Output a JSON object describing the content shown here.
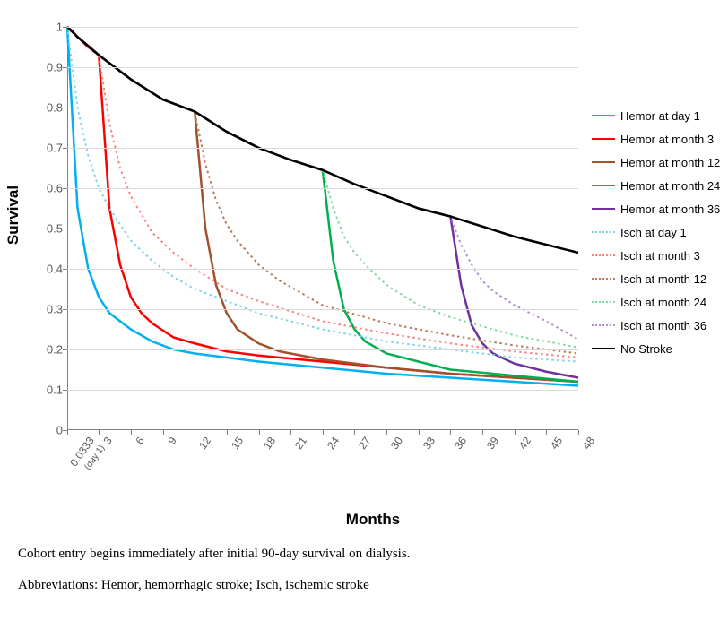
{
  "chart": {
    "type": "line",
    "ylabel": "Survival",
    "xlabel": "Months",
    "ylim": [
      0,
      1
    ],
    "yticks": [
      0,
      0.1,
      0.2,
      0.3,
      0.4,
      0.5,
      0.6,
      0.7,
      0.8,
      0.9,
      1
    ],
    "xtick_labels": [
      "0.0333",
      "3",
      "6",
      "9",
      "12",
      "15",
      "18",
      "21",
      "24",
      "27",
      "30",
      "33",
      "36",
      "39",
      "42",
      "45",
      "48"
    ],
    "xtick_sublabel": "(day 1)",
    "xtick_positions": [
      0.0333,
      3,
      6,
      9,
      12,
      15,
      18,
      21,
      24,
      27,
      30,
      33,
      36,
      39,
      42,
      45,
      48
    ],
    "x_range": [
      0.0333,
      48
    ],
    "background_color": "#ffffff",
    "gridline_color": "#d9d9d9",
    "axis_color": "#808080",
    "tick_color": "#595959",
    "series": [
      {
        "name": "Hemor at day 1",
        "color": "#00b0f0",
        "style": "solid",
        "width": 2.5,
        "data": [
          [
            0.0333,
            1.0
          ],
          [
            1,
            0.55
          ],
          [
            2,
            0.4
          ],
          [
            3,
            0.33
          ],
          [
            4,
            0.29
          ],
          [
            5,
            0.27
          ],
          [
            6,
            0.25
          ],
          [
            8,
            0.22
          ],
          [
            10,
            0.2
          ],
          [
            12,
            0.19
          ],
          [
            15,
            0.18
          ],
          [
            18,
            0.17
          ],
          [
            24,
            0.155
          ],
          [
            30,
            0.14
          ],
          [
            36,
            0.13
          ],
          [
            42,
            0.12
          ],
          [
            48,
            0.11
          ]
        ]
      },
      {
        "name": "Hemor at month 3",
        "color": "#ff0000",
        "style": "solid",
        "width": 2.5,
        "data": [
          [
            0.0333,
            1.0
          ],
          [
            0.5,
            0.99
          ],
          [
            1,
            0.975
          ],
          [
            2,
            0.95
          ],
          [
            3,
            0.93
          ],
          [
            4,
            0.55
          ],
          [
            5,
            0.41
          ],
          [
            6,
            0.33
          ],
          [
            7,
            0.29
          ],
          [
            8,
            0.265
          ],
          [
            10,
            0.23
          ],
          [
            12,
            0.215
          ],
          [
            15,
            0.195
          ],
          [
            18,
            0.185
          ],
          [
            24,
            0.17
          ],
          [
            30,
            0.155
          ],
          [
            36,
            0.14
          ],
          [
            42,
            0.13
          ],
          [
            48,
            0.12
          ]
        ]
      },
      {
        "name": "Hemor at month 12",
        "color": "#a0522d",
        "style": "solid",
        "width": 2.5,
        "data": [
          [
            0.0333,
            1.0
          ],
          [
            1,
            0.975
          ],
          [
            3,
            0.93
          ],
          [
            6,
            0.87
          ],
          [
            9,
            0.82
          ],
          [
            12,
            0.79
          ],
          [
            13,
            0.5
          ],
          [
            14,
            0.36
          ],
          [
            15,
            0.29
          ],
          [
            16,
            0.25
          ],
          [
            18,
            0.215
          ],
          [
            20,
            0.195
          ],
          [
            24,
            0.175
          ],
          [
            30,
            0.155
          ],
          [
            36,
            0.14
          ],
          [
            42,
            0.13
          ],
          [
            48,
            0.12
          ]
        ]
      },
      {
        "name": "Hemor at month 24",
        "color": "#00b050",
        "style": "solid",
        "width": 2.5,
        "data": [
          [
            0.0333,
            1.0
          ],
          [
            1,
            0.975
          ],
          [
            3,
            0.93
          ],
          [
            6,
            0.87
          ],
          [
            9,
            0.82
          ],
          [
            12,
            0.79
          ],
          [
            15,
            0.74
          ],
          [
            18,
            0.7
          ],
          [
            21,
            0.67
          ],
          [
            24,
            0.645
          ],
          [
            25,
            0.42
          ],
          [
            26,
            0.3
          ],
          [
            27,
            0.25
          ],
          [
            28,
            0.22
          ],
          [
            30,
            0.19
          ],
          [
            33,
            0.17
          ],
          [
            36,
            0.15
          ],
          [
            42,
            0.135
          ],
          [
            48,
            0.12
          ]
        ]
      },
      {
        "name": "Hemor at month 36",
        "color": "#7030a0",
        "style": "solid",
        "width": 2.5,
        "data": [
          [
            0.0333,
            1.0
          ],
          [
            1,
            0.975
          ],
          [
            3,
            0.93
          ],
          [
            6,
            0.87
          ],
          [
            9,
            0.82
          ],
          [
            12,
            0.79
          ],
          [
            15,
            0.74
          ],
          [
            18,
            0.7
          ],
          [
            21,
            0.67
          ],
          [
            24,
            0.645
          ],
          [
            27,
            0.61
          ],
          [
            30,
            0.58
          ],
          [
            33,
            0.55
          ],
          [
            36,
            0.53
          ],
          [
            37,
            0.36
          ],
          [
            38,
            0.26
          ],
          [
            39,
            0.215
          ],
          [
            40,
            0.19
          ],
          [
            42,
            0.165
          ],
          [
            45,
            0.145
          ],
          [
            48,
            0.13
          ]
        ]
      },
      {
        "name": "Isch at day 1",
        "color": "#7dd3e8",
        "style": "dotted",
        "width": 2,
        "data": [
          [
            0.0333,
            1.0
          ],
          [
            1,
            0.8
          ],
          [
            2,
            0.68
          ],
          [
            3,
            0.6
          ],
          [
            4,
            0.55
          ],
          [
            6,
            0.47
          ],
          [
            8,
            0.42
          ],
          [
            10,
            0.38
          ],
          [
            12,
            0.35
          ],
          [
            15,
            0.32
          ],
          [
            18,
            0.29
          ],
          [
            24,
            0.25
          ],
          [
            30,
            0.22
          ],
          [
            36,
            0.2
          ],
          [
            42,
            0.18
          ],
          [
            48,
            0.17
          ]
        ]
      },
      {
        "name": "Isch at month 3",
        "color": "#ff8080",
        "style": "dotted",
        "width": 2,
        "data": [
          [
            0.0333,
            1.0
          ],
          [
            1,
            0.975
          ],
          [
            2,
            0.95
          ],
          [
            3,
            0.93
          ],
          [
            4,
            0.76
          ],
          [
            5,
            0.65
          ],
          [
            6,
            0.58
          ],
          [
            8,
            0.49
          ],
          [
            10,
            0.44
          ],
          [
            12,
            0.4
          ],
          [
            15,
            0.35
          ],
          [
            18,
            0.32
          ],
          [
            24,
            0.27
          ],
          [
            30,
            0.24
          ],
          [
            36,
            0.215
          ],
          [
            42,
            0.195
          ],
          [
            48,
            0.18
          ]
        ]
      },
      {
        "name": "Isch at month 12",
        "color": "#b97a57",
        "style": "dotted",
        "width": 2,
        "data": [
          [
            0.0333,
            1.0
          ],
          [
            1,
            0.975
          ],
          [
            3,
            0.93
          ],
          [
            6,
            0.87
          ],
          [
            9,
            0.82
          ],
          [
            12,
            0.79
          ],
          [
            13,
            0.66
          ],
          [
            14,
            0.57
          ],
          [
            15,
            0.51
          ],
          [
            16,
            0.47
          ],
          [
            18,
            0.41
          ],
          [
            20,
            0.37
          ],
          [
            24,
            0.31
          ],
          [
            30,
            0.265
          ],
          [
            36,
            0.235
          ],
          [
            42,
            0.21
          ],
          [
            48,
            0.19
          ]
        ]
      },
      {
        "name": "Isch at month 24",
        "color": "#80d9a0",
        "style": "dotted",
        "width": 2,
        "data": [
          [
            0.0333,
            1.0
          ],
          [
            1,
            0.975
          ],
          [
            3,
            0.93
          ],
          [
            6,
            0.87
          ],
          [
            9,
            0.82
          ],
          [
            12,
            0.79
          ],
          [
            15,
            0.74
          ],
          [
            18,
            0.7
          ],
          [
            21,
            0.67
          ],
          [
            24,
            0.645
          ],
          [
            25,
            0.55
          ],
          [
            26,
            0.48
          ],
          [
            27,
            0.44
          ],
          [
            28,
            0.41
          ],
          [
            30,
            0.36
          ],
          [
            33,
            0.31
          ],
          [
            36,
            0.28
          ],
          [
            42,
            0.235
          ],
          [
            48,
            0.205
          ]
        ]
      },
      {
        "name": "Isch at month 36",
        "color": "#b090d0",
        "style": "dotted",
        "width": 2,
        "data": [
          [
            0.0333,
            1.0
          ],
          [
            1,
            0.975
          ],
          [
            3,
            0.93
          ],
          [
            6,
            0.87
          ],
          [
            9,
            0.82
          ],
          [
            12,
            0.79
          ],
          [
            15,
            0.74
          ],
          [
            18,
            0.7
          ],
          [
            21,
            0.67
          ],
          [
            24,
            0.645
          ],
          [
            27,
            0.61
          ],
          [
            30,
            0.58
          ],
          [
            33,
            0.55
          ],
          [
            36,
            0.53
          ],
          [
            37,
            0.46
          ],
          [
            38,
            0.41
          ],
          [
            39,
            0.37
          ],
          [
            40,
            0.345
          ],
          [
            42,
            0.31
          ],
          [
            45,
            0.27
          ],
          [
            48,
            0.225
          ]
        ]
      },
      {
        "name": "No Stroke",
        "color": "#000000",
        "style": "solid",
        "width": 2.5,
        "data": [
          [
            0.0333,
            1.0
          ],
          [
            1,
            0.975
          ],
          [
            3,
            0.93
          ],
          [
            6,
            0.87
          ],
          [
            9,
            0.82
          ],
          [
            12,
            0.79
          ],
          [
            15,
            0.74
          ],
          [
            18,
            0.7
          ],
          [
            21,
            0.67
          ],
          [
            24,
            0.645
          ],
          [
            27,
            0.61
          ],
          [
            30,
            0.58
          ],
          [
            33,
            0.55
          ],
          [
            36,
            0.53
          ],
          [
            39,
            0.505
          ],
          [
            42,
            0.48
          ],
          [
            45,
            0.46
          ],
          [
            48,
            0.44
          ]
        ]
      }
    ]
  },
  "captions": {
    "line1": "Cohort entry begins immediately after initial 90-day survival on dialysis.",
    "line2": "Abbreviations: Hemor, hemorrhagic stroke; Isch, ischemic stroke"
  }
}
